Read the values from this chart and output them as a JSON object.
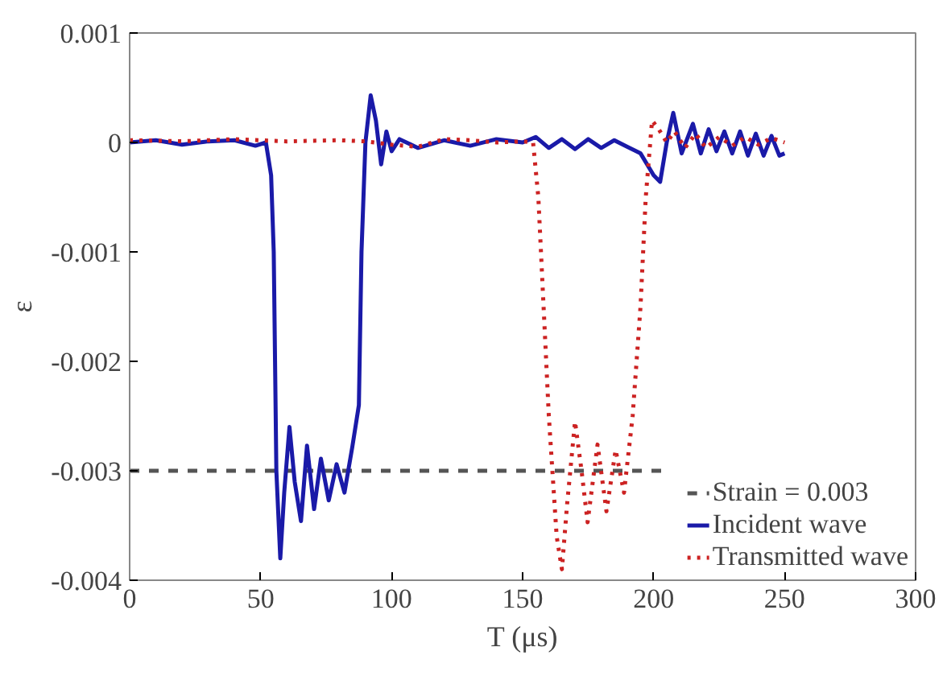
{
  "chart_data": {
    "type": "line",
    "xlabel": "T (μs)",
    "ylabel": "ε",
    "xlim": [
      0,
      300
    ],
    "xticks": [
      0,
      50,
      100,
      150,
      200,
      250,
      300
    ],
    "ylim": [
      -0.004,
      0.001
    ],
    "yticks": [
      -0.004,
      -0.003,
      -0.002,
      -0.001,
      0,
      0.001
    ],
    "grid": false,
    "legend": "bottom right",
    "marker": "none",
    "series": [
      {
        "name": "Strain = 0.003",
        "color": "#555555",
        "line_style": "dashed",
        "x": [
          0,
          204
        ],
        "values": [
          -0.003,
          -0.003
        ]
      },
      {
        "name": "Incident wave",
        "color": "#1a1aa8",
        "line_style": "solid",
        "x": [
          0,
          10,
          20,
          30,
          40,
          48,
          52,
          54,
          55,
          56,
          57.5,
          59,
          61,
          63,
          65.4,
          67.7,
          70.4,
          73,
          76,
          79,
          82,
          85,
          87.5,
          88.5,
          90,
          92,
          94,
          96,
          98,
          100,
          103,
          110,
          120,
          130,
          140,
          150,
          155,
          160,
          165,
          170,
          175,
          180,
          185,
          190,
          195,
          200,
          202.5,
          205,
          207.5,
          210.7,
          215,
          218,
          221,
          224,
          227,
          230,
          233,
          236,
          239,
          242,
          245,
          248,
          250
        ],
        "values": [
          0,
          2e-05,
          -2e-05,
          1e-05,
          2e-05,
          -3e-05,
          0,
          -0.0003,
          -0.001,
          -0.003,
          -0.0038,
          -0.0032,
          -0.0026,
          -0.0031,
          -0.00346,
          -0.00277,
          -0.00335,
          -0.00289,
          -0.00327,
          -0.00294,
          -0.0032,
          -0.00278,
          -0.0024,
          -0.001,
          0,
          0.00043,
          0.0002,
          -0.0002,
          0.0001,
          -8e-05,
          3e-05,
          -5e-05,
          2e-05,
          -3e-05,
          3e-05,
          0,
          5e-05,
          -5e-05,
          3e-05,
          -6e-05,
          3e-05,
          -5e-05,
          2e-05,
          -4e-05,
          -0.0001,
          -0.0003,
          -0.00036,
          0,
          0.00027,
          -0.0001,
          0.00017,
          -0.0001,
          0.00012,
          -8e-05,
          0.0001,
          -0.0001,
          0.0001,
          -0.00012,
          8e-05,
          -0.00012,
          6e-05,
          -0.00012,
          -0.0001
        ]
      },
      {
        "name": "Transmitted wave",
        "color": "#cc2222",
        "line_style": "dotted",
        "x": [
          0,
          20,
          40,
          60,
          80,
          90,
          100,
          110,
          120,
          130,
          140,
          150,
          154,
          156,
          160,
          163,
          165,
          167,
          170,
          172.5,
          174.8,
          178.6,
          182,
          185.5,
          188.7,
          192,
          195,
          197,
          199.4,
          202,
          205,
          208,
          212,
          216,
          220,
          225,
          230,
          235,
          240,
          245,
          250
        ],
        "values": [
          2e-05,
          1e-05,
          3e-05,
          1e-05,
          2e-05,
          1e-05,
          -2e-05,
          -4e-05,
          3e-05,
          2e-05,
          0,
          1e-05,
          0,
          -0.0005,
          -0.0025,
          -0.0036,
          -0.0039,
          -0.0033,
          -0.00255,
          -0.003,
          -0.00347,
          -0.00276,
          -0.00337,
          -0.00281,
          -0.0032,
          -0.0025,
          -0.0015,
          -0.0005,
          0.0002,
          0.00012,
          0,
          0.0001,
          -5e-05,
          8e-05,
          -5e-05,
          5e-05,
          -3e-05,
          5e-05,
          -2e-05,
          4e-05,
          0
        ]
      }
    ]
  }
}
